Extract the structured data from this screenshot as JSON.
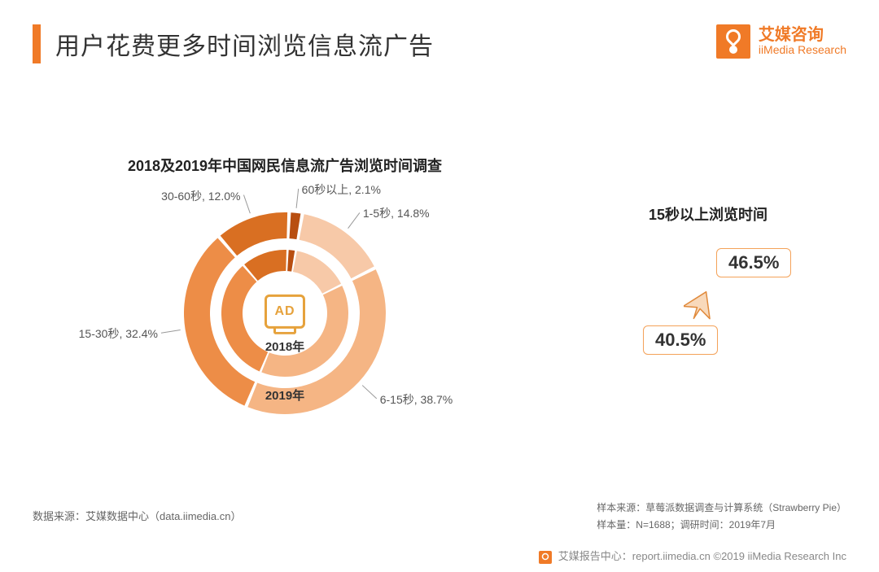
{
  "header": {
    "title": "用户花费更多时间浏览信息流广告",
    "accent_color": "#f07a27"
  },
  "logo": {
    "cn": "艾媒咨询",
    "en": "iiMedia Research",
    "brand_color": "#f07a27"
  },
  "chart": {
    "type": "nested-donut",
    "title": "2018及2019年中国网民信息流广告浏览时间调查",
    "center_icon_text": "AD",
    "background_color": "#ffffff",
    "gap_deg": 2,
    "inner": {
      "year_label": "2018年",
      "radius_outer": 78,
      "radius_inner": 52,
      "colors": [
        "#f7c9a8",
        "#f5b584",
        "#ed8d47",
        "#d96f22",
        "#b84e10"
      ],
      "values_note": "inner ring values not separately labeled; rendered with same proportions"
    },
    "outer": {
      "year_label": "2019年",
      "radius_outer": 124,
      "radius_inner": 92,
      "slices": [
        {
          "label": "1-5秒",
          "value": 14.8,
          "color": "#f7c9a8"
        },
        {
          "label": "6-15秒",
          "value": 38.7,
          "color": "#f5b584"
        },
        {
          "label": "15-30秒",
          "value": 32.4,
          "color": "#ed8d47"
        },
        {
          "label": "30-60秒",
          "value": 12.0,
          "color": "#d96f22"
        },
        {
          "label": "60秒以上",
          "value": 2.1,
          "color": "#b84e10"
        }
      ]
    },
    "label_fontsize": 14,
    "label_color": "#555555",
    "start_angle_deg": -80
  },
  "callout": {
    "title": "15秒以上浏览时间",
    "top_value": "46.5%",
    "bottom_value": "40.5%",
    "badge_border_color": "#f4a259",
    "arrow_fill": "#f8d9bb",
    "arrow_stroke": "#e08a3c"
  },
  "footer": {
    "left": "数据来源：艾媒数据中心（data.iimedia.cn）",
    "right_line1": "样本来源：草莓派数据调查与计算系统（Strawberry Pie）",
    "right_line2": "样本量：N=1688；调研时间：2019年7月",
    "copyright": "艾媒报告中心：report.iimedia.cn  ©2019  iiMedia Research Inc"
  }
}
